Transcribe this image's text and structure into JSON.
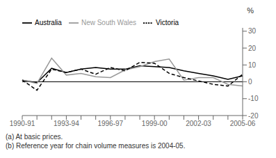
{
  "chart_data": {
    "type": "line",
    "y_label": "%",
    "categories": [
      "1990-91",
      null,
      null,
      "1993-94",
      null,
      null,
      "1996-97",
      null,
      null,
      "1999-00",
      null,
      null,
      "2002-03",
      null,
      null,
      "2005-06"
    ],
    "series": [
      {
        "name": "Australia",
        "color": "#000000",
        "line_style": "solid",
        "values": [
          1.0,
          -0.5,
          8.0,
          5.5,
          7.5,
          8.5,
          7.5,
          7.5,
          9.5,
          9.0,
          8.5,
          6.5,
          5.0,
          3.5,
          1.5,
          3.5
        ]
      },
      {
        "name": "New South Wales",
        "color": "#999999",
        "line_style": "solid",
        "values": [
          1.0,
          -1.0,
          14.0,
          4.0,
          5.0,
          3.0,
          2.5,
          7.0,
          9.0,
          12.0,
          13.5,
          1.0,
          2.5,
          2.5,
          -1.5,
          -2.5
        ]
      },
      {
        "name": "Victoria",
        "color": "#000000",
        "line_style": "dashed",
        "values": [
          1.0,
          -5.0,
          7.5,
          5.5,
          7.5,
          4.5,
          8.5,
          6.5,
          11.5,
          11.0,
          5.0,
          2.5,
          0.5,
          -1.5,
          -2.5,
          4.5
        ]
      }
    ],
    "ylim": [
      -20,
      32
    ],
    "yticks": [
      -20,
      -10,
      0,
      10,
      20,
      30
    ],
    "grid": false,
    "legend": "upper left",
    "annotations": [
      "(a) At basic prices.",
      "(b) Reference year for chain volume measures is 2004-05."
    ]
  }
}
